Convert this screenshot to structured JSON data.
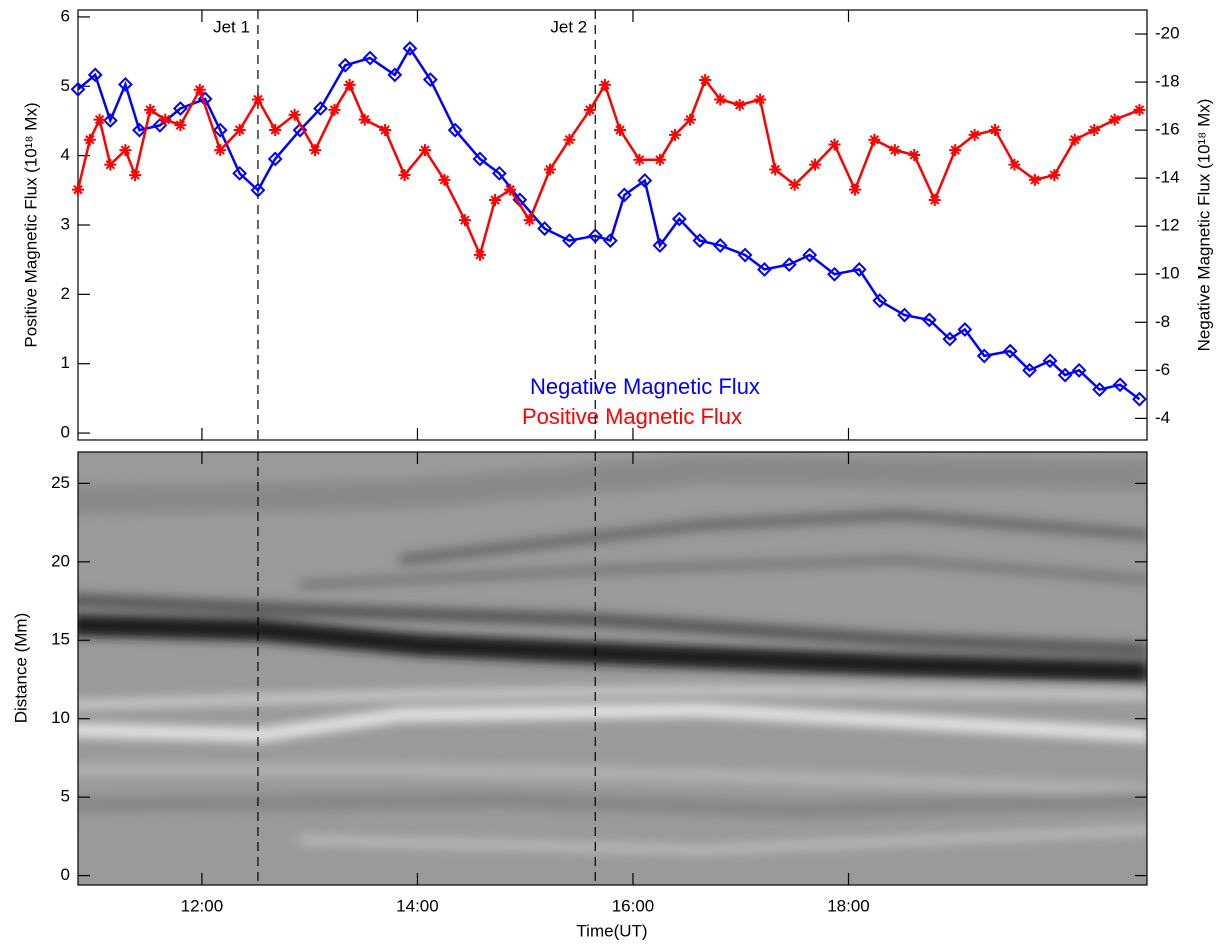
{
  "chart_data": [
    {
      "type": "line",
      "ylabel": "Positive Magnetic Flux (10¹⁸ Mx)",
      "y2label": "Negative Magnetic Flux (10¹⁸ Mx)",
      "xlim": [
        10.85,
        20.77
      ],
      "xticks": [
        12,
        14,
        16,
        18
      ],
      "ylim": [
        -0.1,
        6.1
      ],
      "yticks": [
        0,
        1,
        2,
        3,
        4,
        5,
        6
      ],
      "y2lim": [
        -3.1,
        -21.0
      ],
      "y2ticks": [
        -4,
        -6,
        -8,
        -10,
        -12,
        -14,
        -16,
        -18,
        -20
      ],
      "annotations": [
        {
          "text": "Jet 1",
          "x": 12.52
        },
        {
          "text": "Jet 2",
          "x": 15.65
        }
      ],
      "series": [
        {
          "name": "Negative Magnetic Flux",
          "color": "#0000ff",
          "axis": "y2",
          "marker": "diamond",
          "x": [
            10.85,
            11.01,
            11.15,
            11.29,
            11.42,
            11.61,
            11.8,
            12.03,
            12.17,
            12.35,
            12.52,
            12.68,
            12.91,
            13.1,
            13.33,
            13.56,
            13.79,
            13.93,
            14.12,
            14.35,
            14.58,
            14.76,
            14.95,
            15.18,
            15.41,
            15.65,
            15.79,
            15.92,
            16.11,
            16.25,
            16.43,
            16.62,
            16.81,
            17.04,
            17.22,
            17.45,
            17.64,
            17.87,
            18.1,
            18.29,
            18.52,
            18.75,
            18.94,
            19.08,
            19.26,
            19.5,
            19.68,
            19.87,
            20.01,
            20.14,
            20.33,
            20.52,
            20.7
          ],
          "values": [
            -17.7,
            -18.3,
            -16.4,
            -17.9,
            -16.0,
            -16.2,
            -16.9,
            -17.3,
            -16.0,
            -14.2,
            -13.5,
            -14.8,
            -16.0,
            -16.9,
            -18.7,
            -19.0,
            -18.3,
            -19.4,
            -18.1,
            -16.0,
            -14.8,
            -14.2,
            -13.1,
            -11.9,
            -11.4,
            -11.6,
            -11.4,
            -13.3,
            -13.9,
            -11.2,
            -12.3,
            -11.4,
            -11.2,
            -10.8,
            -10.2,
            -10.4,
            -10.8,
            -10.0,
            -10.2,
            -8.9,
            -8.3,
            -8.1,
            -7.3,
            -7.7,
            -6.6,
            -6.8,
            -6.0,
            -6.4,
            -5.8,
            -6.0,
            -5.2,
            -5.4,
            -4.8
          ]
        },
        {
          "name": "Positive Magnetic Flux",
          "color": "#ff0000",
          "axis": "y",
          "marker": "asterisk",
          "x": [
            10.85,
            10.96,
            11.05,
            11.15,
            11.29,
            11.38,
            11.52,
            11.66,
            11.8,
            11.98,
            12.17,
            12.35,
            12.52,
            12.68,
            12.86,
            13.05,
            13.23,
            13.37,
            13.51,
            13.7,
            13.88,
            14.07,
            14.25,
            14.44,
            14.58,
            14.72,
            14.86,
            15.04,
            15.23,
            15.41,
            15.6,
            15.74,
            15.88,
            16.06,
            16.25,
            16.39,
            16.53,
            16.67,
            16.81,
            16.99,
            17.18,
            17.32,
            17.5,
            17.69,
            17.87,
            18.06,
            18.24,
            18.43,
            18.61,
            18.8,
            18.99,
            19.17,
            19.36,
            19.54,
            19.73,
            19.91,
            20.1,
            20.28,
            20.47,
            20.7
          ],
          "values": [
            3.51,
            4.23,
            4.52,
            3.87,
            4.08,
            3.72,
            4.66,
            4.52,
            4.44,
            4.95,
            4.08,
            4.37,
            4.81,
            4.37,
            4.59,
            4.08,
            4.66,
            5.02,
            4.52,
            4.37,
            3.72,
            4.08,
            3.65,
            3.07,
            2.57,
            3.36,
            3.51,
            3.07,
            3.8,
            4.23,
            4.66,
            5.02,
            4.37,
            3.94,
            3.94,
            4.3,
            4.52,
            5.09,
            4.81,
            4.73,
            4.81,
            3.8,
            3.58,
            3.87,
            4.16,
            3.51,
            4.23,
            4.08,
            4.01,
            3.36,
            4.08,
            4.3,
            4.37,
            3.87,
            3.65,
            3.72,
            4.23,
            4.37,
            4.52,
            4.66
          ]
        }
      ]
    },
    {
      "type": "image",
      "ylabel": "Distance (Mm)",
      "xlabel": "Time(UT)",
      "xlim": [
        10.85,
        20.77
      ],
      "xticks": [
        {
          "value": 12,
          "label": "12:00"
        },
        {
          "value": 14,
          "label": "14:00"
        },
        {
          "value": 16,
          "label": "16:00"
        },
        {
          "value": 18,
          "label": "18:00"
        }
      ],
      "ylim": [
        -0.6,
        27.0
      ],
      "yticks": [
        0,
        5,
        10,
        15,
        20,
        25
      ]
    }
  ]
}
